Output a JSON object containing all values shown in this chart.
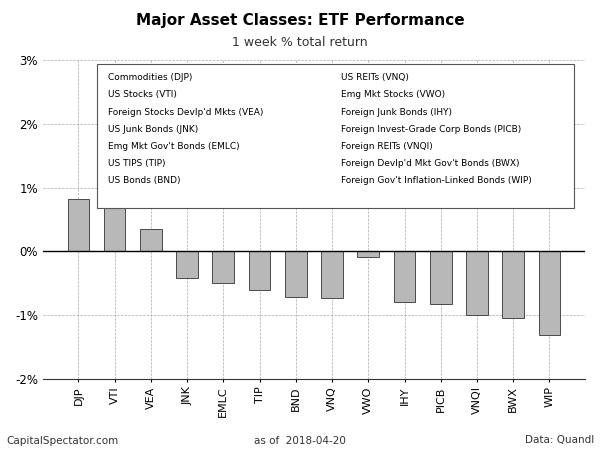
{
  "title": "Major Asset Classes: ETF Performance",
  "subtitle": "1 week % total return",
  "categories": [
    "DJP",
    "VTI",
    "VEA",
    "JNK",
    "EMLC",
    "TIP",
    "BND",
    "VNQ",
    "VWO",
    "IHY",
    "PICB",
    "VNQI",
    "BWX",
    "WIP"
  ],
  "values": [
    0.82,
    0.72,
    0.35,
    -0.42,
    -0.5,
    -0.6,
    -0.72,
    -0.73,
    -0.08,
    -0.8,
    -0.82,
    -1.0,
    -1.05,
    -1.32
  ],
  "bar_color": "#b8b8b8",
  "bar_edge_color": "#333333",
  "background_color": "#ffffff",
  "grid_color": "#aaaaaa",
  "ylim": [
    -2.0,
    3.0
  ],
  "yticks": [
    -2,
    -1,
    0,
    1,
    2,
    3
  ],
  "ytick_labels": [
    "-2%",
    "-1%",
    "0%",
    "1%",
    "2%",
    "3%"
  ],
  "footer_left": "CapitalSpectator.com",
  "footer_center": "as of  2018-04-20",
  "footer_right": "Data: Quandl",
  "legend_col1": [
    "Commodities (DJP)",
    "US Stocks (VTI)",
    "Foreign Stocks Devlp'd Mkts (VEA)",
    "US Junk Bonds (JNK)",
    "Emg Mkt Gov't Bonds (EMLC)",
    "US TIPS (TIP)",
    "US Bonds (BND)"
  ],
  "legend_col2": [
    "US REITs (VNQ)",
    "Emg Mkt Stocks (VWO)",
    "Foreign Junk Bonds (IHY)",
    "Foreign Invest-Grade Corp Bonds (PICB)",
    "Foreign REITs (VNQI)",
    "Foreign Devlp'd Mkt Gov't Bonds (BWX)",
    "Foreign Gov't Inflation-Linked Bonds (WIP)"
  ]
}
